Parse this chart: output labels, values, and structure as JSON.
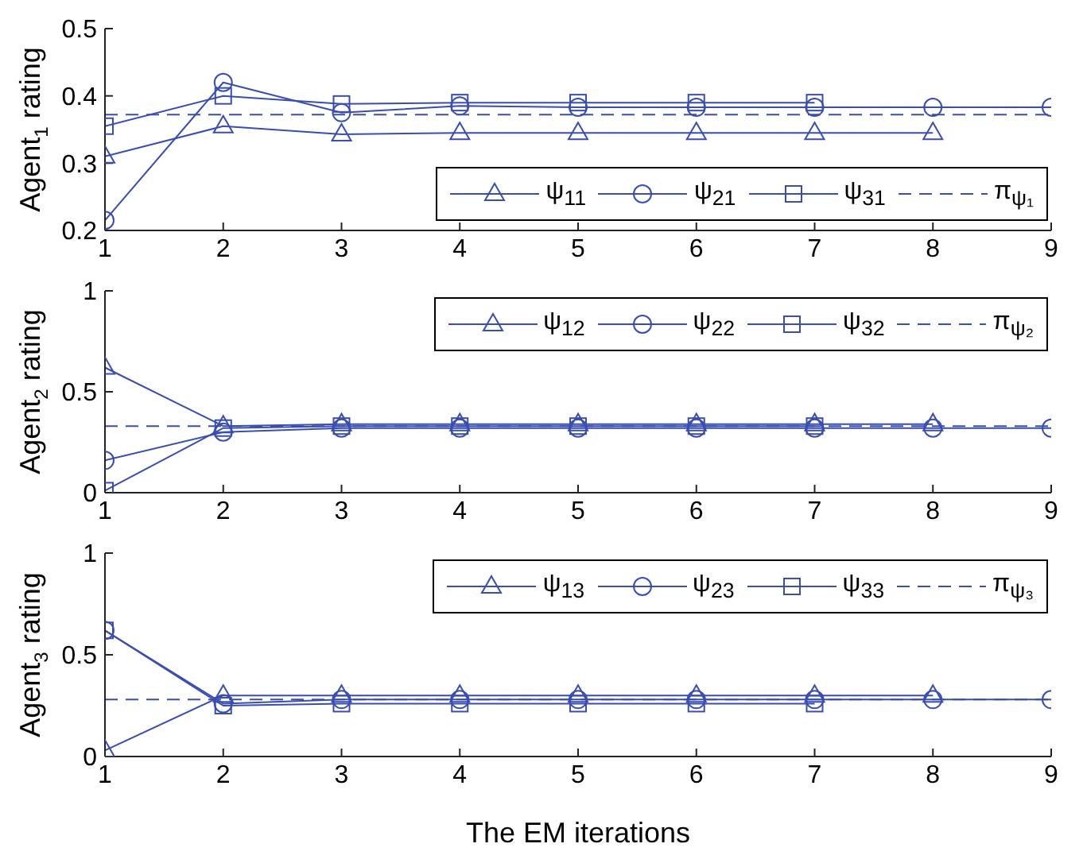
{
  "chart_data": [
    {
      "type": "line",
      "ylabel": "Agent$_{1}$ rating",
      "xlim": [
        1,
        9
      ],
      "xticks": [
        1,
        2,
        3,
        4,
        5,
        6,
        7,
        8,
        9
      ],
      "ylim": [
        0.2,
        0.5
      ],
      "yticks": [
        0.2,
        0.3,
        0.4,
        0.5
      ],
      "legend": "bottom right",
      "line_style": "solid",
      "series": [
        {
          "name": "ψ$_{11}$",
          "color": "#3a4db0",
          "marker": "triangle",
          "x": [
            1,
            2,
            3,
            4,
            5,
            6,
            7,
            8
          ],
          "values": [
            0.31,
            0.355,
            0.343,
            0.345,
            0.345,
            0.345,
            0.345,
            0.345
          ]
        },
        {
          "name": "ψ$_{21}$",
          "color": "#3a4db0",
          "marker": "circle",
          "x": [
            1,
            2,
            3,
            4,
            5,
            6,
            7,
            8,
            9
          ],
          "values": [
            0.215,
            0.42,
            0.375,
            0.385,
            0.383,
            0.383,
            0.383,
            0.383,
            0.383
          ]
        },
        {
          "name": "ψ$_{31}$",
          "color": "#3a4db0",
          "marker": "square",
          "x": [
            1,
            2,
            3,
            4,
            5,
            6,
            7
          ],
          "values": [
            0.355,
            0.4,
            0.388,
            0.39,
            0.39,
            0.39,
            0.39
          ]
        },
        {
          "name": "π$_{ψ₁}$",
          "color": "#3a4db0",
          "marker": "none",
          "line_style": "dashed",
          "x": [
            1,
            9
          ],
          "values": [
            0.372,
            0.372
          ]
        }
      ]
    },
    {
      "type": "line",
      "ylabel": "Agent$_{2}$ rating",
      "xlim": [
        1,
        9
      ],
      "xticks": [
        1,
        2,
        3,
        4,
        5,
        6,
        7,
        8,
        9
      ],
      "ylim": [
        0,
        1
      ],
      "yticks": [
        0,
        0.5,
        1
      ],
      "legend": "top right",
      "line_style": "solid",
      "series": [
        {
          "name": "ψ$_{12}$",
          "color": "#3a4db0",
          "marker": "triangle",
          "x": [
            1,
            2,
            3,
            4,
            5,
            6,
            7,
            8
          ],
          "values": [
            0.62,
            0.33,
            0.34,
            0.34,
            0.34,
            0.34,
            0.34,
            0.34
          ]
        },
        {
          "name": "ψ$_{22}$",
          "color": "#3a4db0",
          "marker": "circle",
          "x": [
            1,
            2,
            3,
            4,
            5,
            6,
            7,
            8,
            9
          ],
          "values": [
            0.16,
            0.3,
            0.32,
            0.32,
            0.32,
            0.32,
            0.32,
            0.32,
            0.32
          ]
        },
        {
          "name": "ψ$_{32}$",
          "color": "#3a4db0",
          "marker": "square",
          "x": [
            1,
            2,
            3,
            4,
            5,
            6,
            7
          ],
          "values": [
            0.01,
            0.32,
            0.33,
            0.33,
            0.33,
            0.33,
            0.33
          ]
        },
        {
          "name": "π$_{ψ₂}$",
          "color": "#3a4db0",
          "marker": "none",
          "line_style": "dashed",
          "x": [
            1,
            9
          ],
          "values": [
            0.33,
            0.33
          ]
        }
      ]
    },
    {
      "type": "line",
      "ylabel": "Agent$_{3}$ rating",
      "xlabel": "The EM iterations",
      "xlim": [
        1,
        9
      ],
      "xticks": [
        1,
        2,
        3,
        4,
        5,
        6,
        7,
        8,
        9
      ],
      "ylim": [
        0,
        1
      ],
      "yticks": [
        0,
        0.5,
        1
      ],
      "legend": "top right",
      "line_style": "solid",
      "series": [
        {
          "name": "ψ$_{13}$",
          "color": "#3a4db0",
          "marker": "triangle",
          "x": [
            1,
            2,
            3,
            4,
            5,
            6,
            7,
            8
          ],
          "values": [
            0.03,
            0.3,
            0.3,
            0.3,
            0.3,
            0.3,
            0.3,
            0.3
          ]
        },
        {
          "name": "ψ$_{23}$",
          "color": "#3a4db0",
          "marker": "circle",
          "x": [
            1,
            2,
            3,
            4,
            5,
            6,
            7,
            8,
            9
          ],
          "values": [
            0.62,
            0.26,
            0.28,
            0.28,
            0.28,
            0.28,
            0.28,
            0.28,
            0.28
          ]
        },
        {
          "name": "ψ$_{33}$",
          "color": "#3a4db0",
          "marker": "square",
          "x": [
            1,
            2,
            3,
            4,
            5,
            6,
            7
          ],
          "values": [
            0.62,
            0.25,
            0.26,
            0.26,
            0.26,
            0.26,
            0.26
          ]
        },
        {
          "name": "π$_{ψ₃}$",
          "color": "#3a4db0",
          "marker": "none",
          "line_style": "dashed",
          "x": [
            1,
            9
          ],
          "values": [
            0.28,
            0.28
          ]
        }
      ]
    }
  ]
}
